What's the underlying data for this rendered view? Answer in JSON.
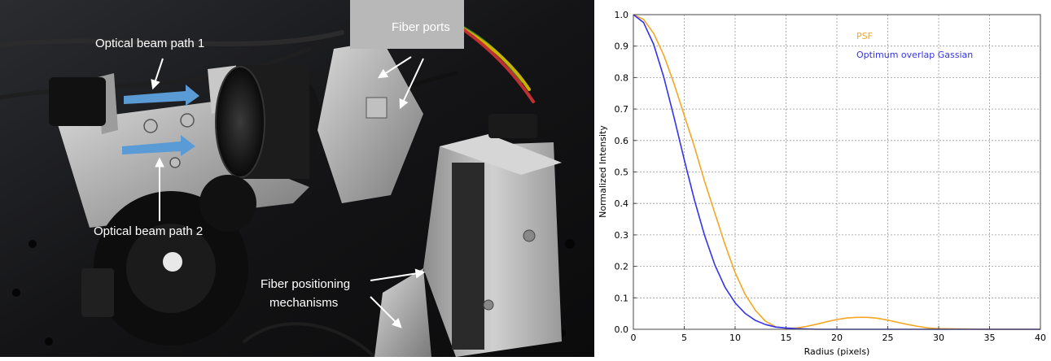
{
  "photo": {
    "labels": {
      "beam1": "Optical beam path 1",
      "fiber_ports": "Fiber ports",
      "beam2": "Optical beam path 2",
      "fiber_pos_line1": "Fiber positioning",
      "fiber_pos_line2": "mechanisms"
    },
    "colors": {
      "background": "#1a1a1c",
      "arrow_blue": "#5b9bd5",
      "label_arrow": "#ffffff"
    }
  },
  "chart_data": {
    "type": "line",
    "title": "",
    "xlabel": "Radius (pixels)",
    "ylabel": "Normalized Intensity",
    "xlim": [
      0,
      40
    ],
    "ylim": [
      0,
      1.0
    ],
    "xticks": [
      0,
      5,
      10,
      15,
      20,
      25,
      30,
      35,
      40
    ],
    "yticks": [
      0.0,
      0.1,
      0.2,
      0.3,
      0.4,
      0.5,
      0.6,
      0.7,
      0.8,
      0.9,
      1.0
    ],
    "grid": true,
    "legend_position": "top-right",
    "series": [
      {
        "name": "PSF",
        "color": "#f5a623",
        "x": [
          0,
          1,
          2,
          3,
          4,
          5,
          6,
          7,
          8,
          9,
          10,
          11,
          12,
          13,
          14,
          15,
          16,
          17,
          18,
          19,
          20,
          21,
          22,
          23,
          24,
          25,
          26,
          27,
          28,
          29,
          30,
          32,
          35,
          40
        ],
        "y": [
          1.0,
          0.985,
          0.94,
          0.87,
          0.78,
          0.68,
          0.58,
          0.47,
          0.37,
          0.27,
          0.18,
          0.11,
          0.06,
          0.025,
          0.008,
          0.003,
          0.004,
          0.009,
          0.016,
          0.024,
          0.031,
          0.036,
          0.038,
          0.038,
          0.035,
          0.029,
          0.022,
          0.015,
          0.009,
          0.004,
          0.002,
          0.001,
          0.0,
          0.0
        ]
      },
      {
        "name": "Optimum overlap Gassian",
        "color": "#3333ee",
        "x": [
          0,
          1,
          2,
          3,
          4,
          5,
          6,
          7,
          8,
          9,
          10,
          11,
          12,
          13,
          14,
          15,
          16,
          18,
          20,
          25,
          30,
          35,
          40
        ],
        "y": [
          1.0,
          0.975,
          0.905,
          0.8,
          0.673,
          0.539,
          0.411,
          0.298,
          0.205,
          0.134,
          0.084,
          0.05,
          0.028,
          0.015,
          0.007,
          0.004,
          0.002,
          0.0,
          0.0,
          0.0,
          0.0,
          0.0,
          0.0
        ]
      }
    ]
  }
}
